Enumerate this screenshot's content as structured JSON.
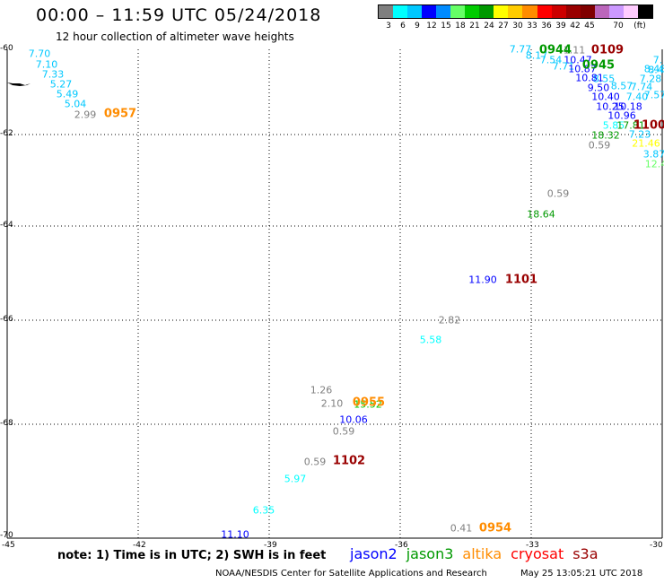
{
  "header": {
    "title": "00:00 – 11:59 UTC 05/24/2018",
    "subtitle": "12 hour collection of altimeter wave heights"
  },
  "legend": {
    "colors": [
      "#7f7f7f",
      "#00ffff",
      "#00c8ff",
      "#0000ff",
      "#008bff",
      "#66ff66",
      "#00cc00",
      "#009900",
      "#ffff00",
      "#ffcc00",
      "#ff8c00",
      "#ff0000",
      "#cc0000",
      "#990000",
      "#800000",
      "#bb66bb",
      "#cc99ff",
      "#ffccff",
      "#000000"
    ],
    "labels": [
      "3",
      "6",
      "9",
      "12",
      "15",
      "18",
      "21",
      "24",
      "27",
      "30",
      "33",
      "36",
      "39",
      "42",
      "45",
      "70",
      "(ft)"
    ]
  },
  "grid": {
    "lat_labels": [
      "-60",
      "-62",
      "-64",
      "-66",
      "-68",
      "-70"
    ],
    "lon_labels": [
      "-45",
      "-42",
      "-39",
      "-36",
      "-33",
      "-30"
    ]
  },
  "observations": [
    {
      "t": "7.70",
      "c": "#00c8ff"
    },
    {
      "t": "7.10",
      "c": "#00c8ff"
    },
    {
      "t": "7.33",
      "c": "#00c8ff"
    },
    {
      "t": "5.27",
      "c": "#00c8ff"
    },
    {
      "t": "5.49",
      "c": "#00c8ff"
    },
    {
      "t": "5.04",
      "c": "#00c8ff"
    },
    {
      "t": "2.99",
      "c": "#7f7f7f"
    },
    {
      "t": "7.77",
      "c": "#00c8ff"
    },
    {
      "t": "8.17",
      "c": "#00c8ff"
    },
    {
      "t": "7.54",
      "c": "#00c8ff"
    },
    {
      "t": "10.47",
      "c": "#0000ff"
    },
    {
      "t": "7.71",
      "c": "#00c8ff"
    },
    {
      "t": "10.87",
      "c": "#0000ff"
    },
    {
      "t": "1.11",
      "c": "#7f7f7f"
    },
    {
      "t": "8.55",
      "c": "#00c8ff"
    },
    {
      "t": "10.81",
      "c": "#0000ff"
    },
    {
      "t": "9.50",
      "c": "#0000ff"
    },
    {
      "t": "8.57",
      "c": "#00c8ff"
    },
    {
      "t": "7.28",
      "c": "#00c8ff"
    },
    {
      "t": "7.74",
      "c": "#00c8ff"
    },
    {
      "t": "8.48",
      "c": "#00c8ff"
    },
    {
      "t": "10.40",
      "c": "#0000ff"
    },
    {
      "t": "7.40",
      "c": "#00c8ff"
    },
    {
      "t": "7.57",
      "c": "#00c8ff"
    },
    {
      "t": "10.25",
      "c": "#0000ff"
    },
    {
      "t": "10.18",
      "c": "#0000ff"
    },
    {
      "t": "10.96",
      "c": "#0000ff"
    },
    {
      "t": "5.85",
      "c": "#00ffff"
    },
    {
      "t": "17.81",
      "c": "#009900"
    },
    {
      "t": "18.32",
      "c": "#009900"
    },
    {
      "t": "7.23",
      "c": "#00c8ff"
    },
    {
      "t": "0.59",
      "c": "#7f7f7f"
    },
    {
      "t": "21.46",
      "c": "#ffff00"
    },
    {
      "t": "3.87",
      "c": "#00c8ff"
    },
    {
      "t": "12.4",
      "c": "#66ff66"
    },
    {
      "t": "7.",
      "c": "#00c8ff"
    },
    {
      "t": "8.4",
      "c": "#00c8ff"
    },
    {
      "t": "0.59",
      "c": "#7f7f7f"
    },
    {
      "t": "18.64",
      "c": "#009900"
    },
    {
      "t": "11.90",
      "c": "#0000ff"
    },
    {
      "t": "2.82",
      "c": "#7f7f7f"
    },
    {
      "t": "5.58",
      "c": "#00ffff"
    },
    {
      "t": "1.26",
      "c": "#7f7f7f"
    },
    {
      "t": "2.10",
      "c": "#7f7f7f"
    },
    {
      "t": "15.52",
      "c": "#00cc00"
    },
    {
      "t": "10.06",
      "c": "#0000ff"
    },
    {
      "t": "0.59",
      "c": "#7f7f7f"
    },
    {
      "t": "0.59",
      "c": "#7f7f7f"
    },
    {
      "t": "5.97",
      "c": "#00ffff"
    },
    {
      "t": "6.35",
      "c": "#00ffff"
    },
    {
      "t": "11.10",
      "c": "#0000ff"
    },
    {
      "t": "0.41",
      "c": "#7f7f7f"
    }
  ],
  "passes": [
    {
      "t": "0957",
      "c": "#ff8c00"
    },
    {
      "t": "0944",
      "c": "#009900"
    },
    {
      "t": "0109",
      "c": "#990000"
    },
    {
      "t": "0945",
      "c": "#009900"
    },
    {
      "t": "1100",
      "c": "#990000"
    },
    {
      "t": "1101",
      "c": "#990000"
    },
    {
      "t": "0955",
      "c": "#ff8c00"
    },
    {
      "t": "1102",
      "c": "#990000"
    },
    {
      "t": "0954",
      "c": "#ff8c00"
    }
  ],
  "footer": {
    "note": "note: 1) Time is in UTC; 2) SWH is in feet",
    "satellites": [
      {
        "name": "jason2",
        "c": "#0000ff"
      },
      {
        "name": "jason3",
        "c": "#009900"
      },
      {
        "name": "altika",
        "c": "#ff8c00"
      },
      {
        "name": "cryosat",
        "c": "#ff0000"
      },
      {
        "name": "s3a",
        "c": "#990000"
      }
    ],
    "credit": "NOAA/NESDIS Center for Satellite Applications and Research",
    "timestamp": "May 25 13:05:21 UTC 2018"
  }
}
